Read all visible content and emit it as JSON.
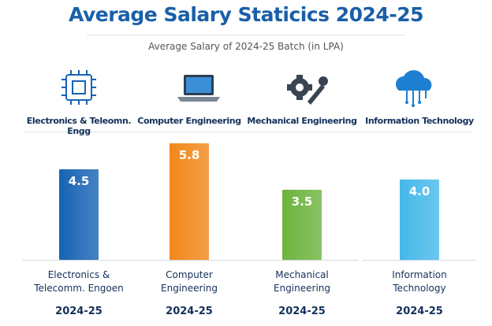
{
  "chart_data": {
    "type": "bar",
    "title": "Average Salary Staticics 2024-25",
    "subtitle": "Average Salary of 2024-25 Batch (in LPA)",
    "header_labels": [
      "Electronics & Teleomn. Engg",
      "Computer Engineering",
      "Mechanical Engineering",
      "Information Technology"
    ],
    "categories": [
      "Electronics & Telecomm. Engoen",
      "Computer Engineering",
      "Mechanical Engineering",
      "Information Technology"
    ],
    "values": [
      4.5,
      5.8,
      3.5,
      4.0
    ],
    "value_labels": [
      "4.5",
      "5.8",
      "3.5",
      "4.0"
    ],
    "colors": [
      "#1763b3",
      "#f2871a",
      "#6cb33c",
      "#45b8ea"
    ],
    "periods": [
      "2024-25",
      "2024-25",
      "2024-25",
      "2024-25"
    ]
  }
}
